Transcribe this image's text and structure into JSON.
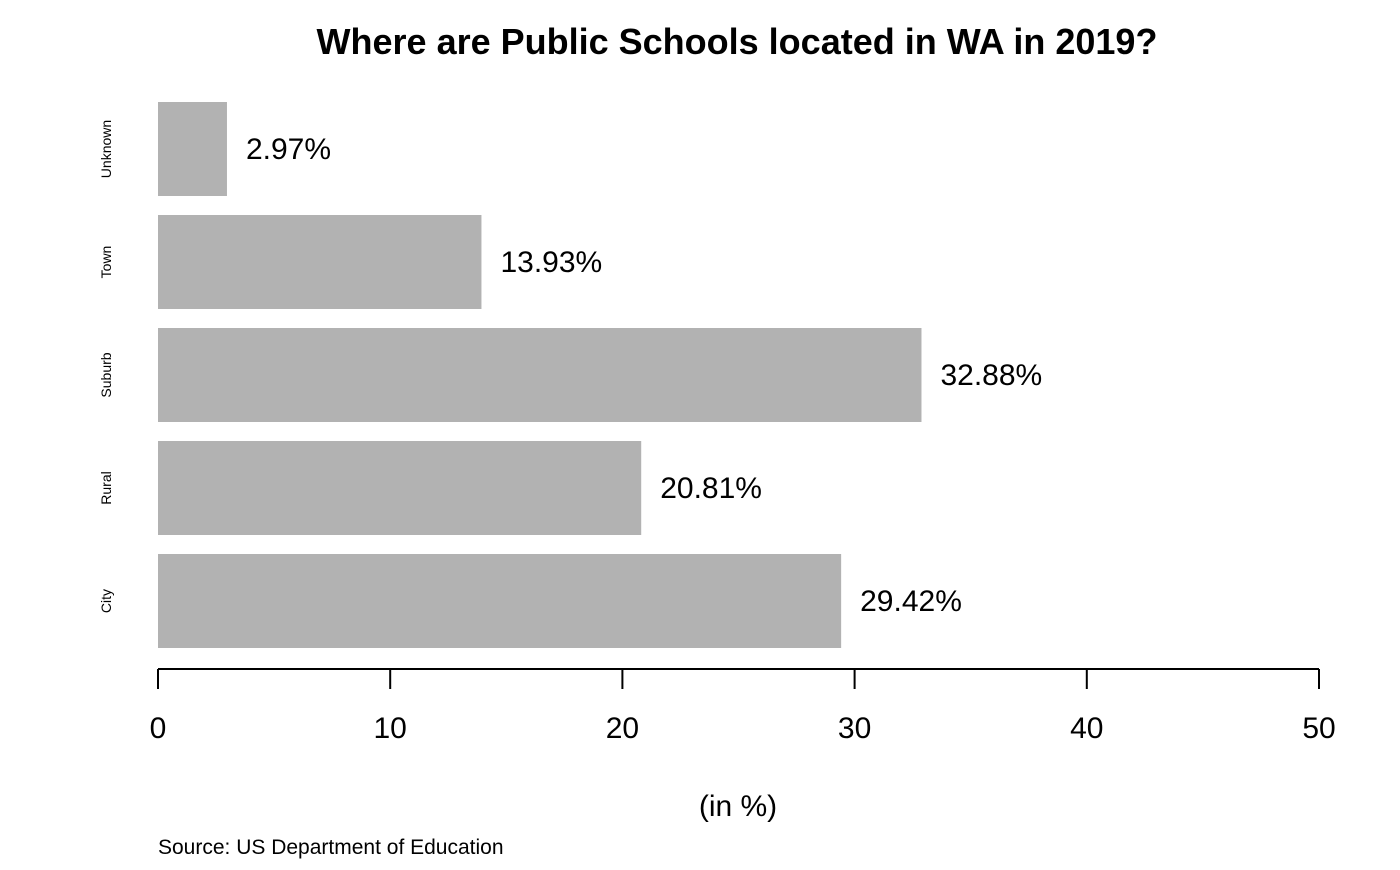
{
  "chart_data": {
    "type": "bar",
    "orientation": "horizontal",
    "title": "Where are Public Schools located in WA in 2019?",
    "xlabel": "(in %)",
    "ylabel": "",
    "source": "Source: US Department of Education",
    "categories": [
      "City",
      "Rural",
      "Suburb",
      "Town",
      "Unknown"
    ],
    "values": [
      29.42,
      20.81,
      32.88,
      13.93,
      2.97
    ],
    "data_labels": [
      "29.42%",
      "20.81%",
      "32.88%",
      "13.93%",
      "2.97%"
    ],
    "xlim": [
      0,
      50
    ],
    "x_ticks": [
      0,
      10,
      20,
      30,
      40,
      50
    ],
    "x_tick_labels": [
      "0",
      "10",
      "20",
      "30",
      "40",
      "50"
    ],
    "grid": false,
    "legend": "none",
    "bar_color": "#b2b2b2",
    "axis_color": "#000000"
  }
}
